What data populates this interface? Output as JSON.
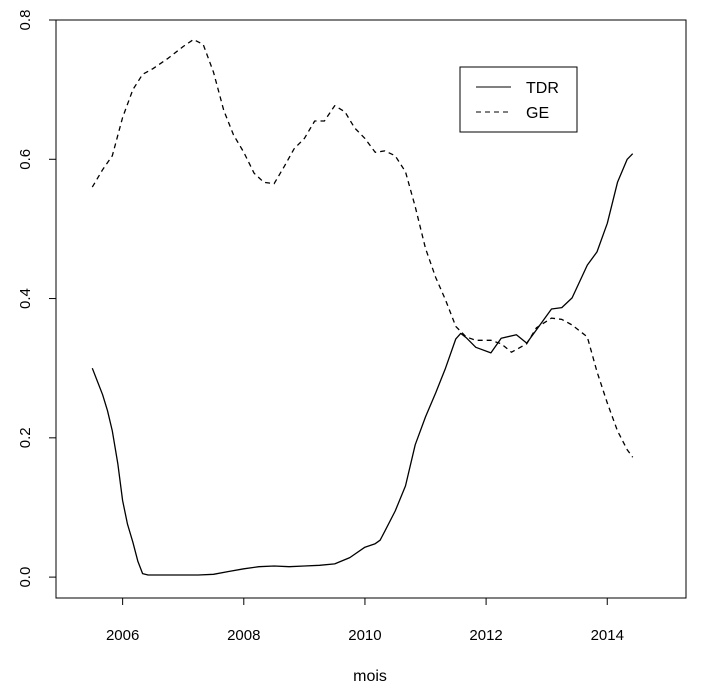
{
  "chart_data": {
    "type": "line",
    "title": "",
    "xlabel": "mois",
    "ylabel": "",
    "xlim": [
      2004.9,
      2015.3
    ],
    "ylim": [
      -0.03,
      0.8
    ],
    "x_ticks": [
      {
        "value": 2006,
        "label": "2006"
      },
      {
        "value": 2008,
        "label": "2008"
      },
      {
        "value": 2010,
        "label": "2010"
      },
      {
        "value": 2012,
        "label": "2012"
      },
      {
        "value": 2014,
        "label": "2014"
      }
    ],
    "y_ticks": [
      {
        "value": 0.0,
        "label": "0.0"
      },
      {
        "value": 0.2,
        "label": "0.2"
      },
      {
        "value": 0.4,
        "label": "0.4"
      },
      {
        "value": 0.6,
        "label": "0.6"
      },
      {
        "value": 0.8,
        "label": "0.8"
      }
    ],
    "grid": false,
    "legend_position": "top-right",
    "series": [
      {
        "name": "TDR",
        "dash": "solid",
        "color": "#000000",
        "x": [
          2005.5,
          2005.67,
          2005.75,
          2005.83,
          2005.92,
          2006.0,
          2006.08,
          2006.17,
          2006.25,
          2006.33,
          2006.42,
          2006.5,
          2006.58,
          2006.75,
          2007.0,
          2007.25,
          2007.5,
          2007.75,
          2008.0,
          2008.25,
          2008.5,
          2008.75,
          2009.0,
          2009.25,
          2009.5,
          2009.75,
          2010.0,
          2010.17,
          2010.25,
          2010.33,
          2010.5,
          2010.67,
          2010.83,
          2011.0,
          2011.17,
          2011.33,
          2011.5,
          2011.58,
          2011.67,
          2011.83,
          2012.08,
          2012.25,
          2012.5,
          2012.67,
          2012.83,
          2013.08,
          2013.25,
          2013.42,
          2013.67,
          2013.83,
          2014.0,
          2014.17,
          2014.33,
          2014.42
        ],
        "values": [
          0.3,
          0.262,
          0.239,
          0.21,
          0.163,
          0.11,
          0.076,
          0.05,
          0.023,
          0.005,
          0.003,
          0.003,
          0.003,
          0.003,
          0.003,
          0.003,
          0.004,
          0.008,
          0.012,
          0.015,
          0.016,
          0.015,
          0.016,
          0.017,
          0.019,
          0.028,
          0.043,
          0.048,
          0.053,
          0.066,
          0.095,
          0.131,
          0.19,
          0.23,
          0.265,
          0.3,
          0.342,
          0.35,
          0.344,
          0.33,
          0.322,
          0.343,
          0.348,
          0.336,
          0.355,
          0.385,
          0.387,
          0.401,
          0.448,
          0.467,
          0.508,
          0.567,
          0.6,
          0.608
        ]
      },
      {
        "name": "GE",
        "dash": "dashed",
        "color": "#000000",
        "x": [
          2005.5,
          2005.67,
          2005.83,
          2006.0,
          2006.17,
          2006.33,
          2006.5,
          2006.75,
          2007.0,
          2007.17,
          2007.33,
          2007.5,
          2007.67,
          2007.83,
          2008.0,
          2008.17,
          2008.33,
          2008.5,
          2008.67,
          2008.83,
          2009.0,
          2009.17,
          2009.33,
          2009.5,
          2009.67,
          2009.83,
          2010.0,
          2010.17,
          2010.33,
          2010.5,
          2010.67,
          2010.83,
          2011.0,
          2011.17,
          2011.33,
          2011.5,
          2011.67,
          2011.83,
          2012.08,
          2012.25,
          2012.42,
          2012.67,
          2012.83,
          2013.08,
          2013.25,
          2013.42,
          2013.67,
          2013.83,
          2014.0,
          2014.17,
          2014.33,
          2014.42
        ],
        "values": [
          0.56,
          0.585,
          0.605,
          0.66,
          0.7,
          0.722,
          0.73,
          0.745,
          0.762,
          0.772,
          0.765,
          0.725,
          0.67,
          0.635,
          0.61,
          0.58,
          0.567,
          0.565,
          0.59,
          0.615,
          0.63,
          0.655,
          0.655,
          0.677,
          0.668,
          0.645,
          0.63,
          0.61,
          0.612,
          0.605,
          0.582,
          0.532,
          0.472,
          0.43,
          0.398,
          0.36,
          0.345,
          0.34,
          0.34,
          0.335,
          0.323,
          0.335,
          0.358,
          0.372,
          0.37,
          0.362,
          0.345,
          0.295,
          0.25,
          0.21,
          0.183,
          0.172
        ]
      }
    ]
  }
}
